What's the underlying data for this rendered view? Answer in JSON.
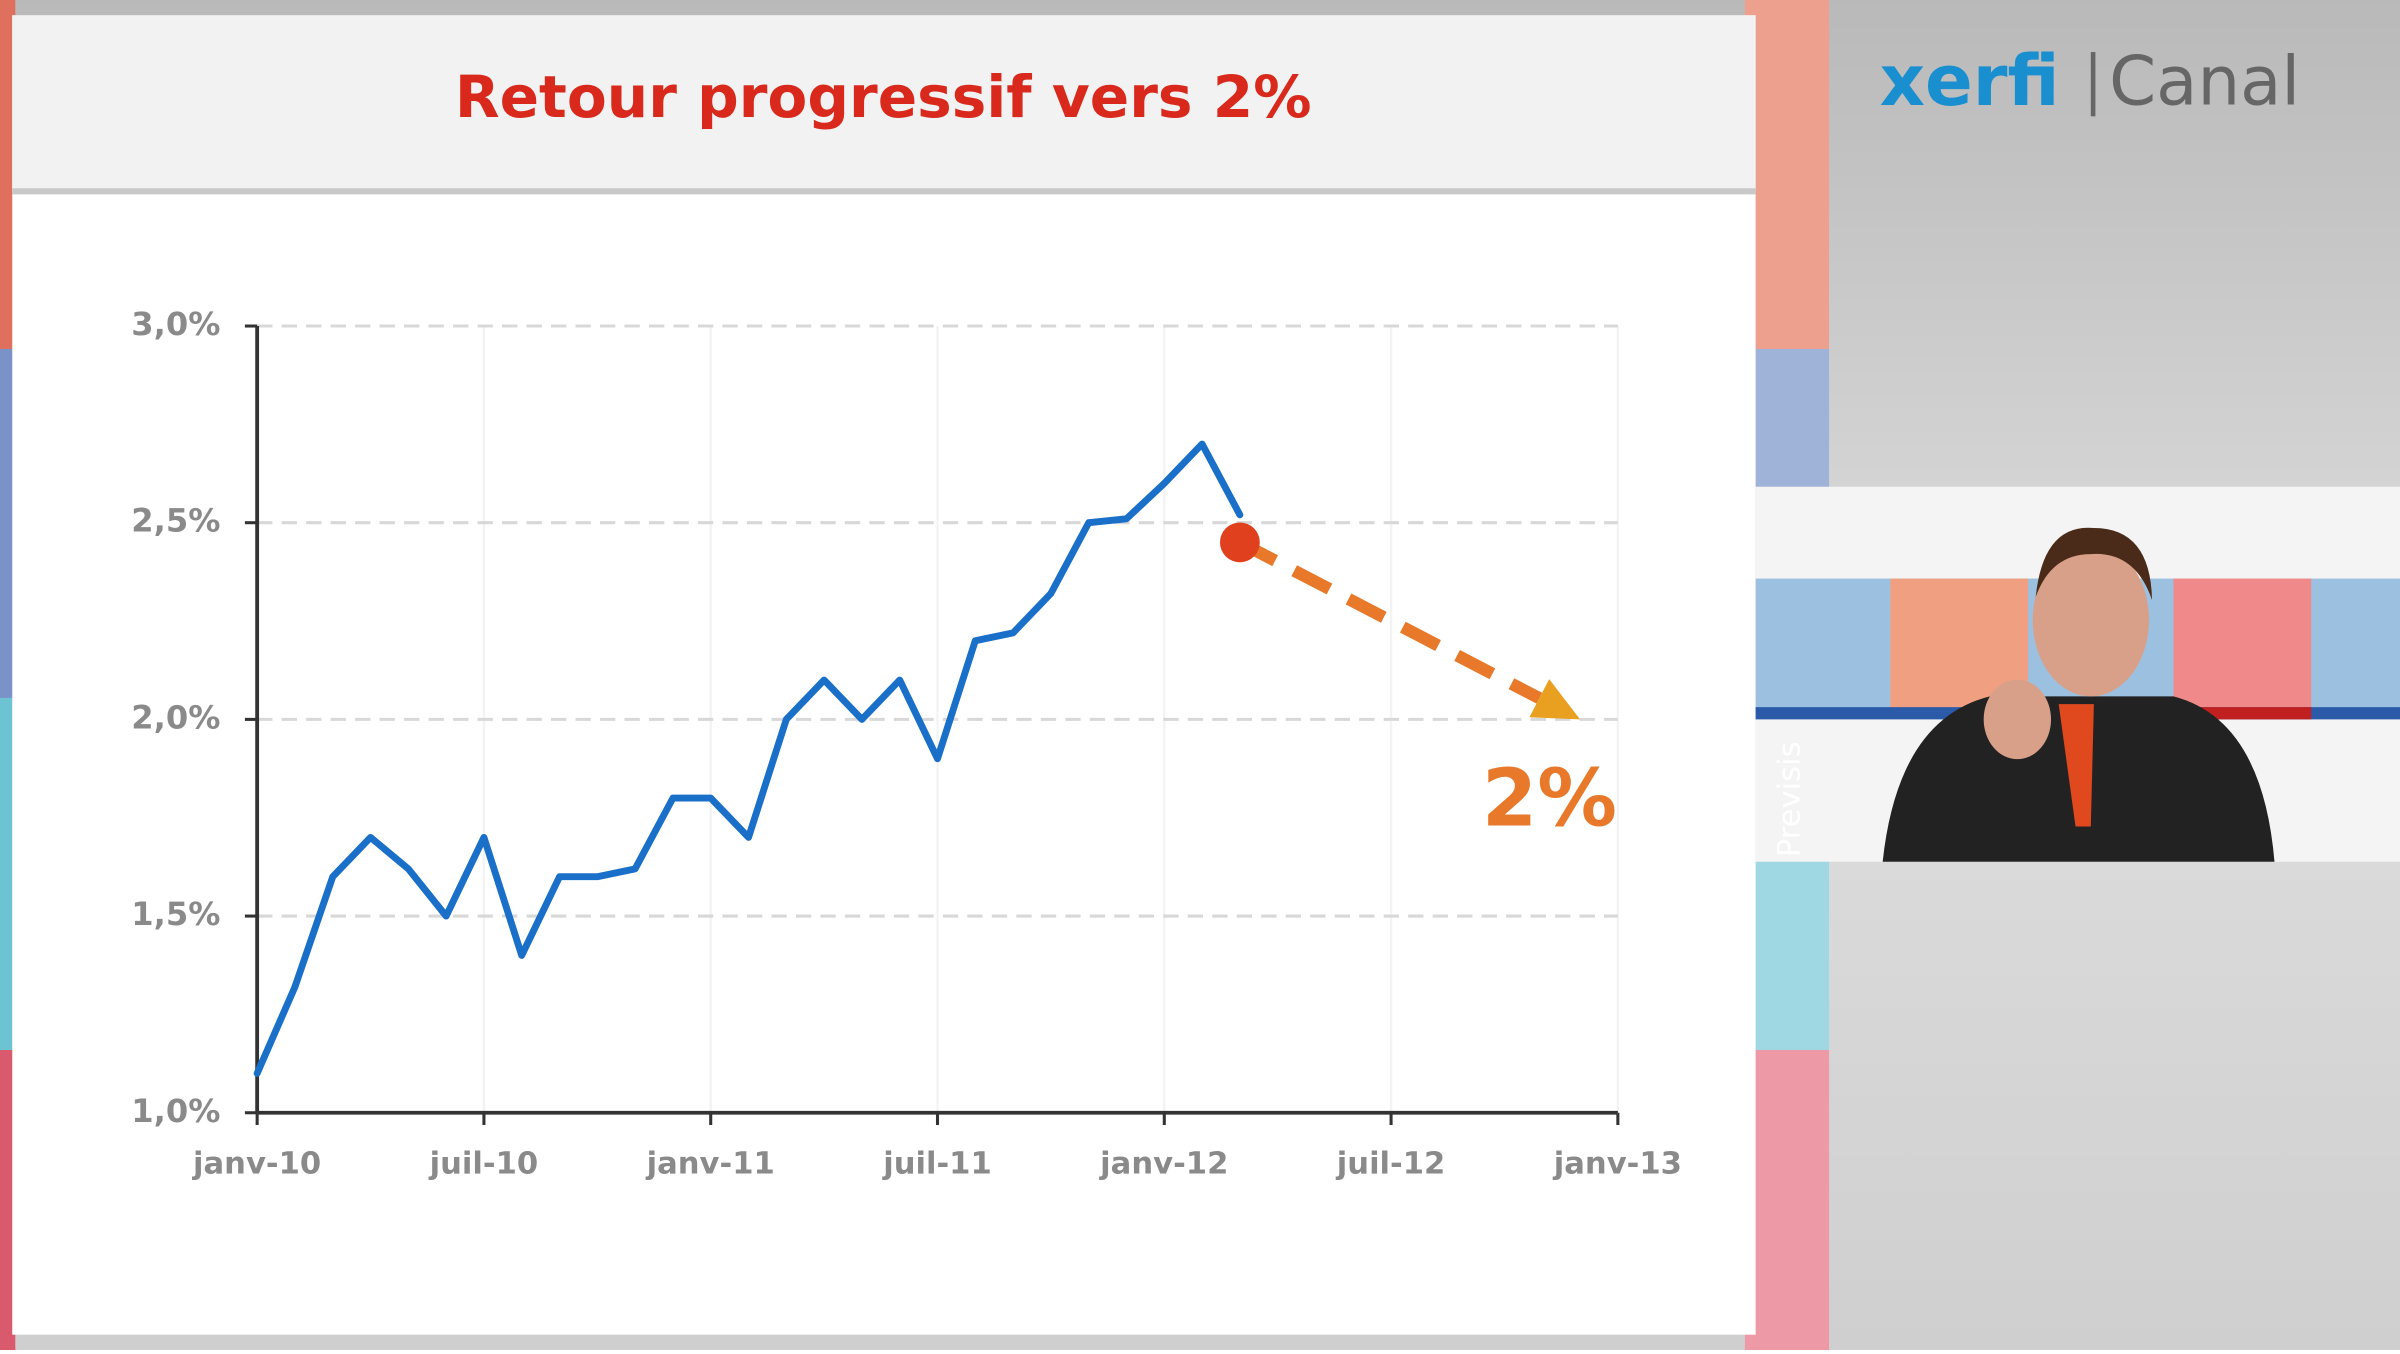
{
  "chart_data": {
    "type": "line",
    "title": "Retour progressif vers 2%",
    "x": [
      "2010-01",
      "2010-02",
      "2010-03",
      "2010-04",
      "2010-05",
      "2010-06",
      "2010-07",
      "2010-08",
      "2010-09",
      "2010-10",
      "2010-11",
      "2010-12",
      "2011-01",
      "2011-02",
      "2011-03",
      "2011-04",
      "2011-05",
      "2011-06",
      "2011-07",
      "2011-08",
      "2011-09",
      "2011-10",
      "2011-11",
      "2011-12",
      "2012-01",
      "2012-02",
      "2012-03"
    ],
    "series": [
      {
        "color": "#1a6fc9",
        "values": [
          1.1,
          1.32,
          1.6,
          1.7,
          1.62,
          1.5,
          1.7,
          1.4,
          1.6,
          1.6,
          1.62,
          1.8,
          1.8,
          1.7,
          2.0,
          2.1,
          2.0,
          2.1,
          1.9,
          2.2,
          2.22,
          2.32,
          2.5,
          2.51,
          2.6,
          2.7,
          2.52
        ]
      }
    ],
    "forecast": {
      "x": [
        "2012-03",
        "2012-12"
      ],
      "values": [
        2.45,
        2.0
      ],
      "color": "#e8792a",
      "dot_color": "#e0401e",
      "label": "2%"
    },
    "xlim": [
      "2010-01",
      "2013-01"
    ],
    "xticks": [
      {
        "value": "2010-01",
        "label": "janv-10"
      },
      {
        "value": "2010-07",
        "label": "juil-10"
      },
      {
        "value": "2011-01",
        "label": "janv-11"
      },
      {
        "value": "2011-07",
        "label": "juil-11"
      },
      {
        "value": "2012-01",
        "label": "janv-12"
      },
      {
        "value": "2012-07",
        "label": "juil-12"
      },
      {
        "value": "2013-01",
        "label": "janv-13"
      }
    ],
    "ylim": [
      1.0,
      3.0
    ],
    "yticks": [
      {
        "value": 1.0,
        "label": "1,0%"
      },
      {
        "value": 1.5,
        "label": "1,5%"
      },
      {
        "value": 2.0,
        "label": "2,0%"
      },
      {
        "value": 2.5,
        "label": "2,5%"
      },
      {
        "value": 3.0,
        "label": "3,0%"
      }
    ],
    "grid": true
  },
  "logo": {
    "brand": "xerfi",
    "channel": "Canal"
  },
  "video": {
    "caption": "Previsis"
  }
}
